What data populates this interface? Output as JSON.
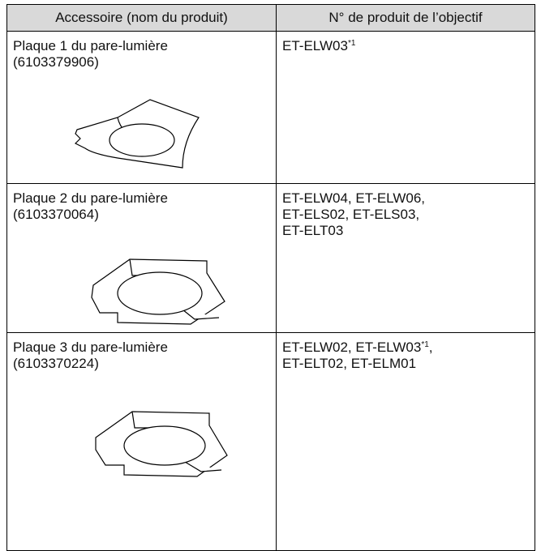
{
  "table": {
    "header": [
      "Accessoire (nom du produit)",
      "N° de produit de l’objectif"
    ],
    "rows": [
      {
        "name": "Plaque 1 du pare-lumière",
        "code": "(6103379906)",
        "lens_lines": [
          [
            {
              "t": "ET-ELW03"
            },
            {
              "sup": "*1"
            }
          ]
        ]
      },
      {
        "name": "Plaque 2 du pare-lumière",
        "code": "(6103370064)",
        "lens_lines": [
          [
            {
              "t": "ET-ELW04, ET-ELW06,"
            }
          ],
          [
            {
              "t": "ET-ELS02, ET-ELS03,"
            }
          ],
          [
            {
              "t": "ET-ELT03"
            }
          ]
        ]
      },
      {
        "name": "Plaque 3 du pare-lumière",
        "code": "(6103370224)",
        "lens_lines": [
          [
            {
              "t": "ET-ELW02, ET-ELW03"
            },
            {
              "sup": "*1"
            },
            {
              "t": ","
            }
          ],
          [
            {
              "t": "ET-ELT02, ET-ELM01"
            }
          ]
        ]
      }
    ]
  }
}
